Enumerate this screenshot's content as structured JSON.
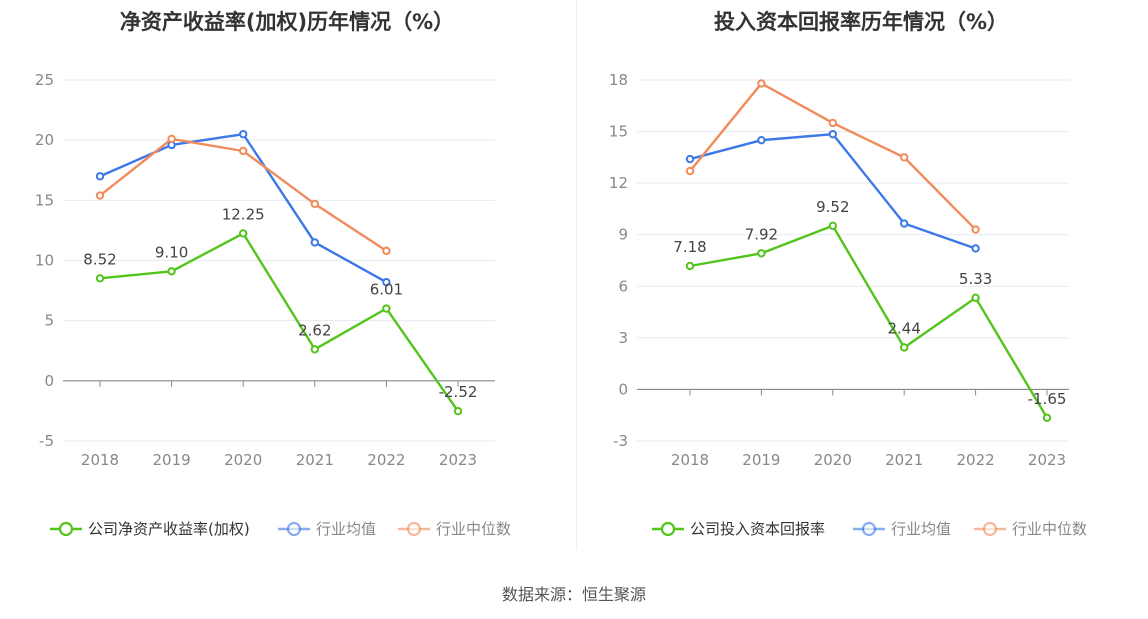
{
  "charts": [
    {
      "title": "净资产收益率(加权)历年情况（%）",
      "chart_data": {
        "type": "line",
        "categories": [
          "2018",
          "2019",
          "2020",
          "2021",
          "2022",
          "2023"
        ],
        "ylim": [
          -5,
          25
        ],
        "yticks": [
          -5,
          0,
          5,
          10,
          15,
          20,
          25
        ],
        "series": [
          {
            "name": "公司净资产收益率(加权)",
            "color": "#52c41a",
            "values": [
              8.52,
              9.1,
              12.25,
              2.62,
              6.01,
              -2.52
            ],
            "labels": [
              "8.52",
              "9.10",
              "12.25",
              "2.62",
              "6.01",
              "-2.52"
            ]
          },
          {
            "name": "行业均值",
            "color": "#3c78e8",
            "values": [
              17.0,
              19.6,
              20.5,
              11.5,
              8.2,
              null
            ]
          },
          {
            "name": "行业中位数",
            "color": "#f28b5b",
            "values": [
              15.4,
              20.1,
              19.1,
              14.7,
              10.8,
              null
            ]
          }
        ]
      }
    },
    {
      "title": "投入资本回报率历年情况（%）",
      "chart_data": {
        "type": "line",
        "categories": [
          "2018",
          "2019",
          "2020",
          "2021",
          "2022",
          "2023"
        ],
        "ylim": [
          -3,
          18
        ],
        "yticks": [
          -3,
          0,
          3,
          6,
          9,
          12,
          15,
          18
        ],
        "series": [
          {
            "name": "公司投入资本回报率",
            "color": "#52c41a",
            "values": [
              7.18,
              7.92,
              9.52,
              2.44,
              5.33,
              -1.65
            ],
            "labels": [
              "7.18",
              "7.92",
              "9.52",
              "2.44",
              "5.33",
              "-1.65"
            ]
          },
          {
            "name": "行业均值",
            "color": "#3c78e8",
            "values": [
              13.4,
              14.5,
              14.85,
              9.65,
              8.2,
              null
            ]
          },
          {
            "name": "行业中位数",
            "color": "#f28b5b",
            "values": [
              12.7,
              17.8,
              15.5,
              13.5,
              9.3,
              null
            ]
          }
        ]
      }
    }
  ],
  "source": "数据来源：恒生聚源"
}
